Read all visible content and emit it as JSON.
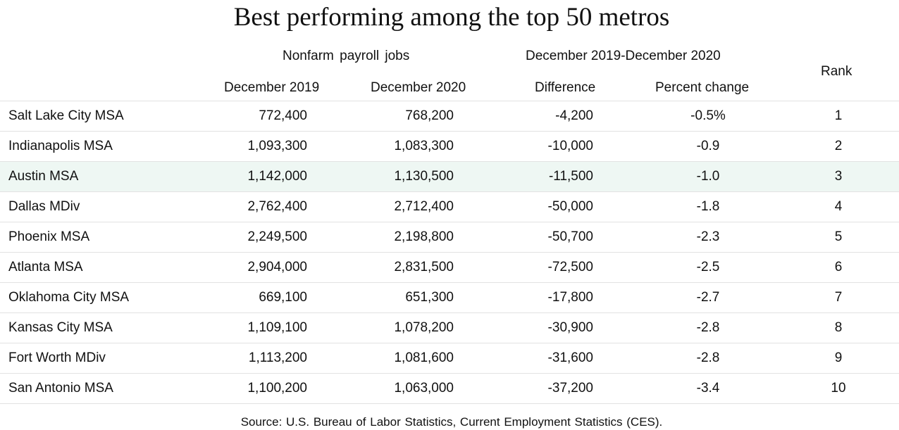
{
  "title": "Best performing among the top 50 metros",
  "headers": {
    "group_payroll": "Nonfarm  payroll jobs",
    "group_change": "December 2019-December 2020",
    "rank": "Rank",
    "dec2019": "December 2019",
    "dec2020": "December 2020",
    "difference": "Difference",
    "percent_change": "Percent change"
  },
  "rows": [
    {
      "name": "Salt Lake City MSA",
      "dec2019": "772,400",
      "dec2020": "768,200",
      "difference": "-4,200",
      "percent": "-0.5%",
      "rank": "1"
    },
    {
      "name": "Indianapolis MSA",
      "dec2019": "1,093,300",
      "dec2020": "1,083,300",
      "difference": "-10,000",
      "percent": "-0.9",
      "rank": "2"
    },
    {
      "name": "Austin MSA",
      "dec2019": "1,142,000",
      "dec2020": "1,130,500",
      "difference": "-11,500",
      "percent": "-1.0",
      "rank": "3"
    },
    {
      "name": "Dallas MDiv",
      "dec2019": "2,762,400",
      "dec2020": "2,712,400",
      "difference": "-50,000",
      "percent": "-1.8",
      "rank": "4"
    },
    {
      "name": "Phoenix MSA",
      "dec2019": "2,249,500",
      "dec2020": "2,198,800",
      "difference": "-50,700",
      "percent": "-2.3",
      "rank": "5"
    },
    {
      "name": "Atlanta MSA",
      "dec2019": "2,904,000",
      "dec2020": "2,831,500",
      "difference": "-72,500",
      "percent": "-2.5",
      "rank": "6"
    },
    {
      "name": "Oklahoma  City MSA",
      "dec2019": "669,100",
      "dec2020": "651,300",
      "difference": "-17,800",
      "percent": "-2.7",
      "rank": "7"
    },
    {
      "name": "Kansas City MSA",
      "dec2019": "1,109,100",
      "dec2020": "1,078,200",
      "difference": "-30,900",
      "percent": "-2.8",
      "rank": "8"
    },
    {
      "name": "Fort Worth MDiv",
      "dec2019": "1,113,200",
      "dec2020": "1,081,600",
      "difference": "-31,600",
      "percent": "-2.8",
      "rank": "9"
    },
    {
      "name": "San Antonio MSA",
      "dec2019": "1,100,200",
      "dec2020": "1,063,000",
      "difference": "-37,200",
      "percent": "-3.4",
      "rank": "10"
    }
  ],
  "source": "Source:  U.S. Bureau of Labor Statistics, Current Employment Statistics (CES).",
  "colors": {
    "highlight_row": "#eef7f3",
    "divider": "#e2e2e2",
    "text": "#111111"
  }
}
